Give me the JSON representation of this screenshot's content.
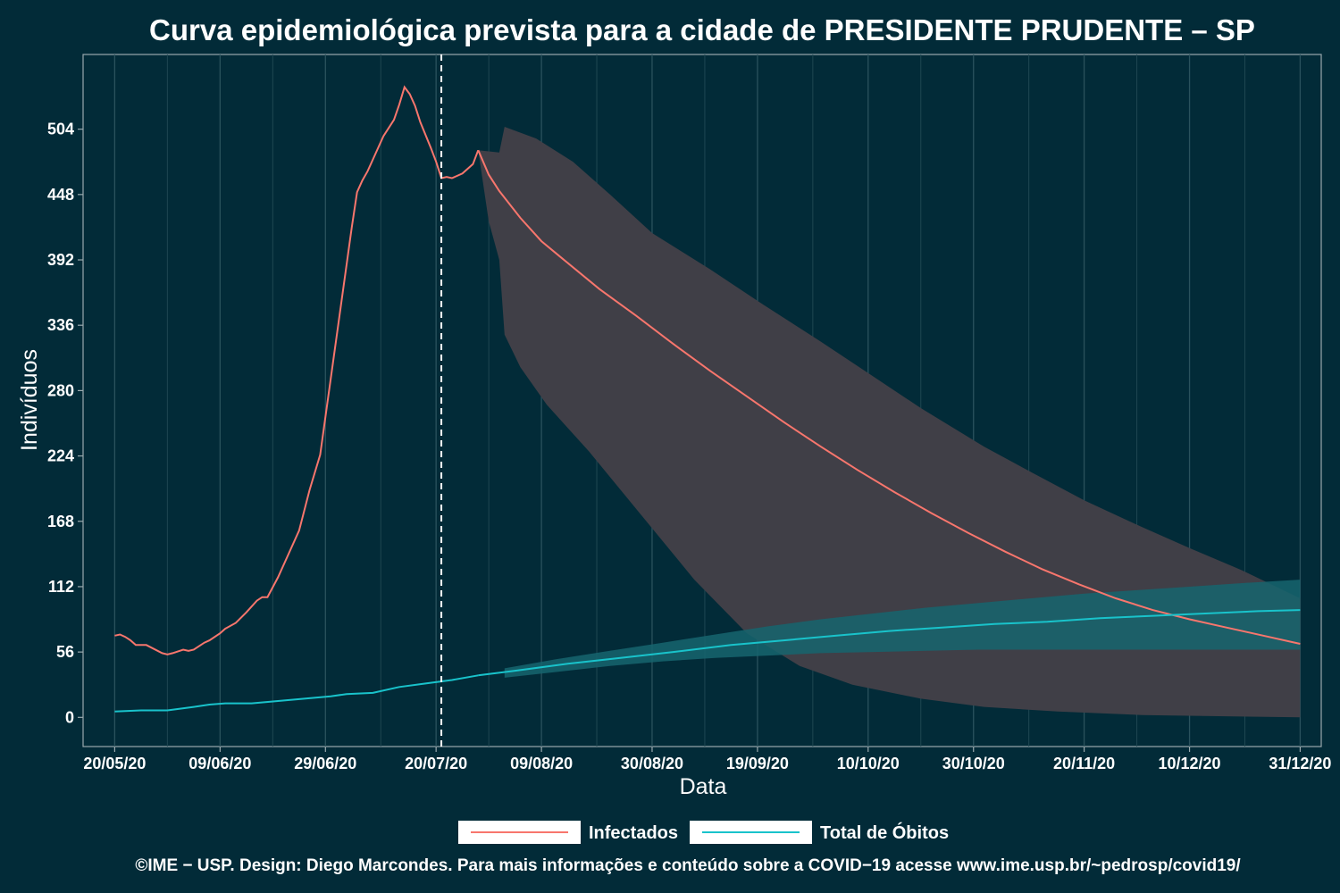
{
  "chart_data": {
    "type": "line",
    "title": "Curva epidemiológica prevista para a cidade de PRESIDENTE PRUDENTE – SP",
    "xlabel": "Data",
    "ylabel": "Indivíduos",
    "x_tick_labels": [
      "20/05/20",
      "09/06/20",
      "29/06/20",
      "20/07/20",
      "09/08/20",
      "30/08/20",
      "19/09/20",
      "10/10/20",
      "30/10/20",
      "20/11/20",
      "10/12/20",
      "31/12/20"
    ],
    "y_ticks": [
      0,
      56,
      112,
      168,
      224,
      280,
      336,
      392,
      448,
      504
    ],
    "ylim": [
      -25,
      568
    ],
    "xlim": [
      "2020-05-14",
      "2021-01-04"
    ],
    "grid": true,
    "legend_position": "bottom",
    "forecast_start": "2020-07-21",
    "colors": {
      "background": "#022b38",
      "infectados": "#f8766d",
      "obitos": "#19c3cb",
      "band_infectados": "#403f47",
      "band_obitos": "#16656f",
      "vline": "#ffffff"
    },
    "series": [
      {
        "name": "Infectados",
        "observed": [
          [
            "2020-05-20",
            70
          ],
          [
            "2020-05-21",
            71
          ],
          [
            "2020-05-22",
            69
          ],
          [
            "2020-05-23",
            66
          ],
          [
            "2020-05-24",
            62
          ],
          [
            "2020-05-26",
            62
          ],
          [
            "2020-05-29",
            55
          ],
          [
            "2020-05-30",
            54
          ],
          [
            "2020-05-31",
            55
          ],
          [
            "2020-06-02",
            58
          ],
          [
            "2020-06-03",
            57
          ],
          [
            "2020-06-04",
            58
          ],
          [
            "2020-06-05",
            61
          ],
          [
            "2020-06-06",
            64
          ],
          [
            "2020-06-07",
            66
          ],
          [
            "2020-06-09",
            72
          ],
          [
            "2020-06-10",
            76
          ],
          [
            "2020-06-12",
            81
          ],
          [
            "2020-06-14",
            90
          ],
          [
            "2020-06-16",
            100
          ],
          [
            "2020-06-17",
            103
          ],
          [
            "2020-06-18",
            103
          ],
          [
            "2020-06-20",
            120
          ],
          [
            "2020-06-22",
            140
          ],
          [
            "2020-06-24",
            160
          ],
          [
            "2020-06-26",
            195
          ],
          [
            "2020-06-28",
            225
          ],
          [
            "2020-06-30",
            290
          ],
          [
            "2020-07-02",
            355
          ],
          [
            "2020-07-04",
            420
          ],
          [
            "2020-07-05",
            450
          ],
          [
            "2020-07-06",
            460
          ],
          [
            "2020-07-07",
            468
          ],
          [
            "2020-07-08",
            478
          ],
          [
            "2020-07-10",
            498
          ],
          [
            "2020-07-12",
            512
          ],
          [
            "2020-07-13",
            525
          ],
          [
            "2020-07-14",
            540
          ],
          [
            "2020-07-15",
            534
          ],
          [
            "2020-07-16",
            524
          ],
          [
            "2020-07-17",
            510
          ],
          [
            "2020-07-19",
            488
          ],
          [
            "2020-07-20",
            476
          ],
          [
            "2020-07-21",
            462
          ],
          [
            "2020-07-22",
            463
          ],
          [
            "2020-07-23",
            462
          ],
          [
            "2020-07-25",
            466
          ],
          [
            "2020-07-27",
            474
          ],
          [
            "2020-07-28",
            486
          ]
        ],
        "forecast": [
          [
            "2020-07-28",
            486
          ],
          [
            "2020-07-30",
            465
          ],
          [
            "2020-08-01",
            451
          ],
          [
            "2020-08-05",
            428
          ],
          [
            "2020-08-09",
            408
          ],
          [
            "2020-08-13",
            393
          ],
          [
            "2020-08-20",
            367
          ],
          [
            "2020-08-27",
            344
          ],
          [
            "2020-09-03",
            320
          ],
          [
            "2020-09-10",
            297
          ],
          [
            "2020-09-17",
            275
          ],
          [
            "2020-09-24",
            253
          ],
          [
            "2020-10-01",
            232
          ],
          [
            "2020-10-08",
            212
          ],
          [
            "2020-10-15",
            193
          ],
          [
            "2020-10-22",
            175
          ],
          [
            "2020-10-29",
            158
          ],
          [
            "2020-11-05",
            142
          ],
          [
            "2020-11-12",
            127
          ],
          [
            "2020-11-19",
            114
          ],
          [
            "2020-11-26",
            102
          ],
          [
            "2020-12-03",
            92
          ],
          [
            "2020-12-10",
            84
          ],
          [
            "2020-12-17",
            77
          ],
          [
            "2020-12-24",
            70
          ],
          [
            "2020-12-31",
            63
          ]
        ],
        "band_upper": [
          [
            "2020-07-28",
            486
          ],
          [
            "2020-08-01",
            484
          ],
          [
            "2020-08-02",
            506
          ],
          [
            "2020-08-08",
            496
          ],
          [
            "2020-08-15",
            476
          ],
          [
            "2020-08-22",
            448
          ],
          [
            "2020-08-30",
            415
          ],
          [
            "2020-09-10",
            384
          ],
          [
            "2020-09-20",
            354
          ],
          [
            "2020-10-01",
            322
          ],
          [
            "2020-10-10",
            295
          ],
          [
            "2020-10-20",
            265
          ],
          [
            "2020-11-01",
            232
          ],
          [
            "2020-11-10",
            210
          ],
          [
            "2020-11-20",
            186
          ],
          [
            "2020-12-01",
            163
          ],
          [
            "2020-12-10",
            145
          ],
          [
            "2020-12-20",
            126
          ],
          [
            "2020-12-31",
            102
          ]
        ],
        "band_lower": [
          [
            "2020-07-28",
            486
          ],
          [
            "2020-07-30",
            425
          ],
          [
            "2020-08-01",
            392
          ],
          [
            "2020-08-02",
            328
          ],
          [
            "2020-08-05",
            300
          ],
          [
            "2020-08-10",
            268
          ],
          [
            "2020-08-18",
            228
          ],
          [
            "2020-08-28",
            173
          ],
          [
            "2020-09-07",
            118
          ],
          [
            "2020-09-17",
            72
          ],
          [
            "2020-09-27",
            44
          ],
          [
            "2020-10-07",
            28
          ],
          [
            "2020-10-20",
            16
          ],
          [
            "2020-11-01",
            9
          ],
          [
            "2020-11-15",
            5
          ],
          [
            "2020-12-01",
            2
          ],
          [
            "2020-12-31",
            0
          ]
        ]
      },
      {
        "name": "Total de Óbitos",
        "observed": [
          [
            "2020-05-20",
            5
          ],
          [
            "2020-05-25",
            6
          ],
          [
            "2020-05-30",
            6
          ],
          [
            "2020-06-04",
            9
          ],
          [
            "2020-06-07",
            11
          ],
          [
            "2020-06-10",
            12
          ],
          [
            "2020-06-15",
            12
          ],
          [
            "2020-06-20",
            14
          ],
          [
            "2020-06-25",
            16
          ],
          [
            "2020-06-30",
            18
          ],
          [
            "2020-07-03",
            20
          ],
          [
            "2020-07-08",
            21
          ],
          [
            "2020-07-13",
            26
          ],
          [
            "2020-07-18",
            29
          ],
          [
            "2020-07-23",
            32
          ],
          [
            "2020-07-28",
            36
          ]
        ],
        "forecast": [
          [
            "2020-07-28",
            36
          ],
          [
            "2020-08-04",
            40
          ],
          [
            "2020-08-14",
            46
          ],
          [
            "2020-08-24",
            51
          ],
          [
            "2020-09-03",
            56
          ],
          [
            "2020-09-14",
            62
          ],
          [
            "2020-09-24",
            66
          ],
          [
            "2020-10-04",
            70
          ],
          [
            "2020-10-14",
            74
          ],
          [
            "2020-10-24",
            77
          ],
          [
            "2020-11-03",
            80
          ],
          [
            "2020-11-13",
            82
          ],
          [
            "2020-11-23",
            85
          ],
          [
            "2020-12-03",
            87
          ],
          [
            "2020-12-13",
            89
          ],
          [
            "2020-12-23",
            91
          ],
          [
            "2020-12-31",
            92
          ]
        ],
        "band_upper": [
          [
            "2020-08-02",
            42
          ],
          [
            "2020-08-12",
            50
          ],
          [
            "2020-08-22",
            57
          ],
          [
            "2020-09-01",
            64
          ],
          [
            "2020-09-11",
            71
          ],
          [
            "2020-09-21",
            78
          ],
          [
            "2020-10-01",
            84
          ],
          [
            "2020-10-11",
            89
          ],
          [
            "2020-10-21",
            94
          ],
          [
            "2020-10-31",
            98
          ],
          [
            "2020-11-10",
            102
          ],
          [
            "2020-11-20",
            106
          ],
          [
            "2020-11-30",
            109
          ],
          [
            "2020-12-10",
            112
          ],
          [
            "2020-12-20",
            115
          ],
          [
            "2020-12-31",
            118
          ]
        ],
        "band_lower": [
          [
            "2020-08-02",
            34
          ],
          [
            "2020-08-12",
            39
          ],
          [
            "2020-08-22",
            44
          ],
          [
            "2020-09-01",
            48
          ],
          [
            "2020-09-11",
            51
          ],
          [
            "2020-09-21",
            53
          ],
          [
            "2020-10-01",
            55
          ],
          [
            "2020-10-11",
            56
          ],
          [
            "2020-10-21",
            57
          ],
          [
            "2020-10-31",
            58
          ],
          [
            "2020-11-20",
            58
          ],
          [
            "2020-12-10",
            58
          ],
          [
            "2020-12-31",
            58
          ]
        ]
      }
    ]
  },
  "legend": {
    "items": [
      {
        "label": "Infectados",
        "color": "#f8766d"
      },
      {
        "label": "Total de Óbitos",
        "color": "#19c3cb"
      }
    ]
  },
  "footer": {
    "credit": "©IME − USP. Design: Diego Marcondes. Para mais informações e conteúdo sobre a COVID−19 acesse www.ime.usp.br/~pedrosp/covid19/"
  }
}
